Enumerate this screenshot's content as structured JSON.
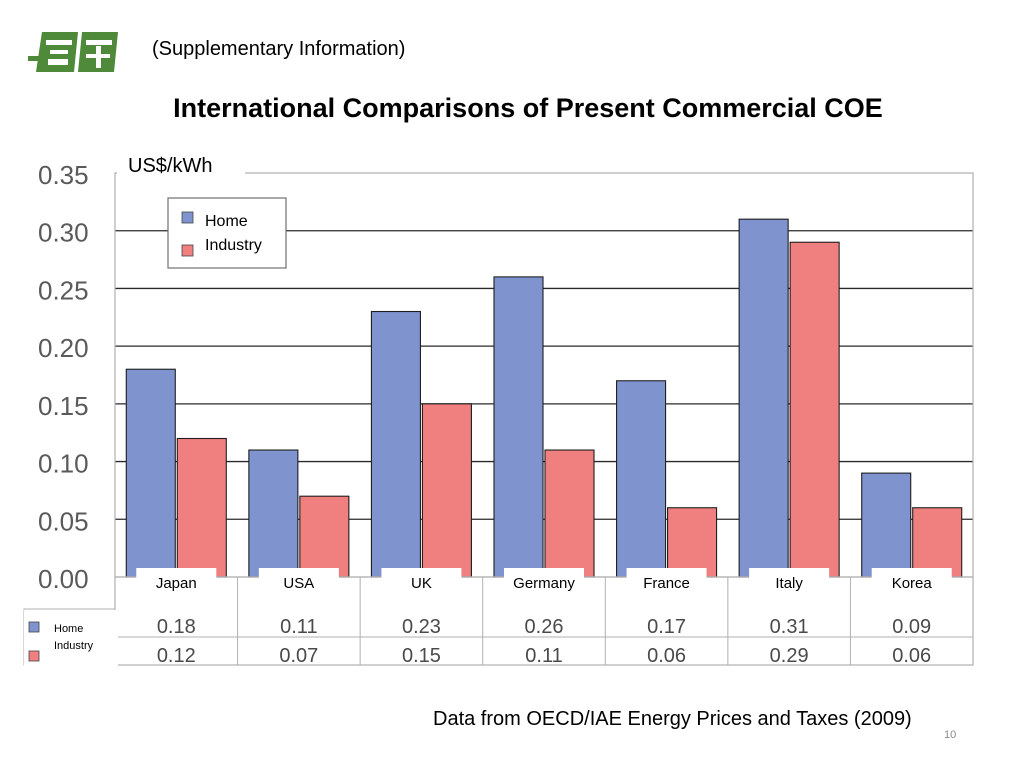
{
  "slide": {
    "supplementary": "(Supplementary Information)",
    "title": "International Comparisons of Present Commercial COE",
    "source": "Data from OECD/IAE Energy Prices and Taxes (2009)",
    "page_number": "10"
  },
  "colors": {
    "home": "#7f93cf",
    "industry": "#f08080",
    "logo": "#4f8a3a"
  },
  "chart_data": {
    "type": "bar",
    "unit_label": "US$/kWh",
    "categories": [
      "Japan",
      "USA",
      "UK",
      "Germany",
      "France",
      "Italy",
      "Korea"
    ],
    "series": [
      {
        "name": "Home",
        "values": [
          0.18,
          0.11,
          0.23,
          0.26,
          0.17,
          0.31,
          0.09
        ]
      },
      {
        "name": "Industry",
        "values": [
          0.12,
          0.07,
          0.15,
          0.11,
          0.06,
          0.29,
          0.06
        ]
      }
    ],
    "ylim": [
      0,
      0.35
    ],
    "yticks": [
      "0.00",
      "0.05",
      "0.10",
      "0.15",
      "0.20",
      "0.25",
      "0.30",
      "0.35"
    ],
    "table_values": [
      [
        "0.18",
        "0.11",
        "0.23",
        "0.26",
        "0.17",
        "0.31",
        "0.09"
      ],
      [
        "0.12",
        "0.07",
        "0.15",
        "0.11",
        "0.06",
        "0.29",
        "0.06"
      ]
    ],
    "grid": true,
    "legend_position": "top-left"
  }
}
